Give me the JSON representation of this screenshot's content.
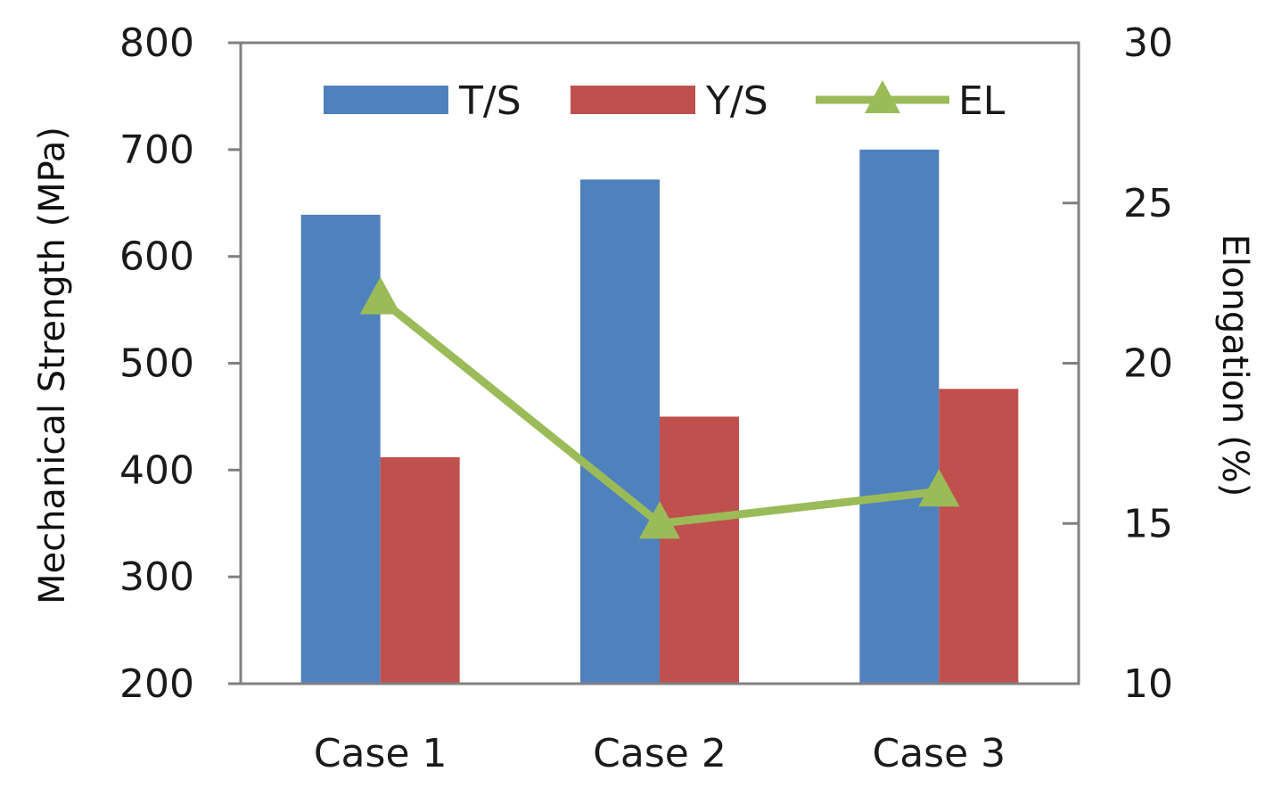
{
  "chart_data": {
    "type": "bar",
    "categories": [
      "Case 1",
      "Case 2",
      "Case 3"
    ],
    "series": [
      {
        "name": "T/S",
        "axis": "left",
        "kind": "bar",
        "color": "#4f81bd",
        "values": [
          639,
          672,
          700
        ]
      },
      {
        "name": "Y/S",
        "axis": "left",
        "kind": "bar",
        "color": "#c0504d",
        "values": [
          412,
          450,
          476
        ]
      },
      {
        "name": "EL",
        "axis": "right",
        "kind": "line",
        "marker": "triangle",
        "color": "#9bbb59",
        "values": [
          22.0,
          15.0,
          16.0
        ]
      }
    ],
    "ylabel": "Mechanical Strength (MPa)",
    "y2label": "Elongation (%)",
    "ylim": [
      200,
      800
    ],
    "y2lim": [
      10,
      30
    ],
    "yticks": [
      "200",
      "300",
      "400",
      "500",
      "600",
      "700",
      "800"
    ],
    "y2ticks": [
      "10",
      "15",
      "20",
      "25",
      "30"
    ],
    "grid": false,
    "legend": "top",
    "axis_color": "#808080"
  }
}
